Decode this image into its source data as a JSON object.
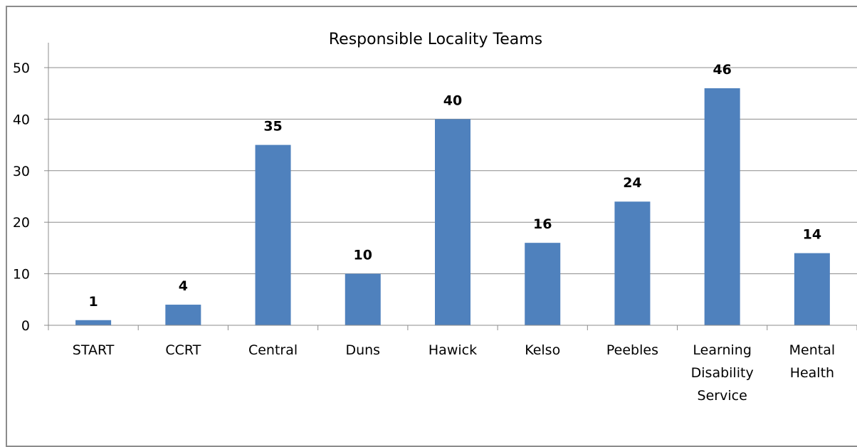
{
  "chart_data": {
    "type": "bar",
    "title": "Responsible Locality Teams",
    "xlabel": "",
    "ylabel": "",
    "categories": [
      [
        "START"
      ],
      [
        "CCRT"
      ],
      [
        "Central"
      ],
      [
        "Duns"
      ],
      [
        "Hawick"
      ],
      [
        "Kelso"
      ],
      [
        "Peebles"
      ],
      [
        "Learning",
        "Disability",
        "Service"
      ],
      [
        "Mental",
        "Health"
      ]
    ],
    "values": [
      1,
      4,
      35,
      10,
      40,
      16,
      24,
      46,
      14
    ],
    "ylim": [
      0,
      50
    ],
    "yticks": [
      0,
      10,
      20,
      30,
      40,
      50
    ],
    "grid": true,
    "legend": "none",
    "bar_color": "#4f81bd",
    "grid_color": "#8c8c8c"
  }
}
